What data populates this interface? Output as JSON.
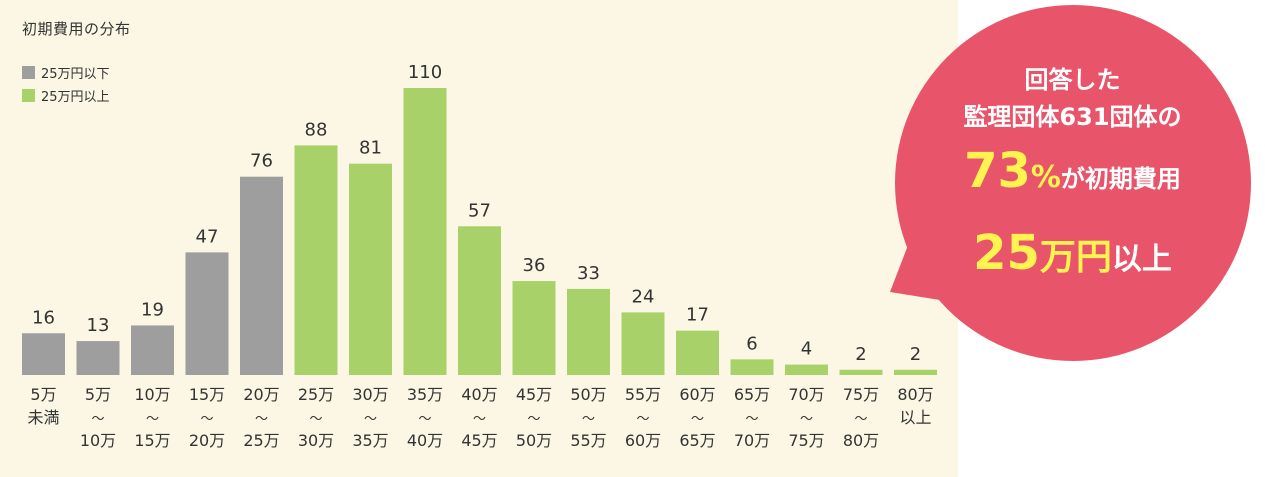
{
  "chart_data": {
    "type": "bar",
    "title": "初期費用の分布",
    "legend": [
      {
        "name": "25万円以下",
        "color": "#9e9e9e"
      },
      {
        "name": "25万円以上",
        "color": "#a9d16a"
      }
    ],
    "categories": [
      [
        "5万",
        "未満"
      ],
      [
        "5万",
        "〜",
        "10万"
      ],
      [
        "10万",
        "〜",
        "15万"
      ],
      [
        "15万",
        "〜",
        "20万"
      ],
      [
        "20万",
        "〜",
        "25万"
      ],
      [
        "25万",
        "〜",
        "30万"
      ],
      [
        "30万",
        "〜",
        "35万"
      ],
      [
        "35万",
        "〜",
        "40万"
      ],
      [
        "40万",
        "〜",
        "45万"
      ],
      [
        "45万",
        "〜",
        "50万"
      ],
      [
        "50万",
        "〜",
        "55万"
      ],
      [
        "55万",
        "〜",
        "60万"
      ],
      [
        "60万",
        "〜",
        "65万"
      ],
      [
        "65万",
        "〜",
        "70万"
      ],
      [
        "70万",
        "〜",
        "75万"
      ],
      [
        "75万",
        "〜",
        "80万"
      ],
      [
        "80万",
        "以上"
      ]
    ],
    "values": [
      16,
      13,
      19,
      47,
      76,
      88,
      81,
      110,
      57,
      36,
      33,
      24,
      17,
      6,
      4,
      2,
      2
    ],
    "groups": [
      0,
      0,
      0,
      0,
      0,
      1,
      1,
      1,
      1,
      1,
      1,
      1,
      1,
      1,
      1,
      1,
      1
    ],
    "ylim": [
      0,
      110
    ],
    "grid": false,
    "legend_position": "top-left"
  },
  "callout": {
    "line1": "回答した",
    "line2": "監理団体631団体の",
    "pct_number": "73",
    "pct_sign": "%",
    "pct_suffix": "が初期費用",
    "amount_number": "25",
    "amount_unit": "万円",
    "amount_suffix": "以上",
    "bg_color": "#e8546a",
    "highlight_color": "#fff44f"
  }
}
